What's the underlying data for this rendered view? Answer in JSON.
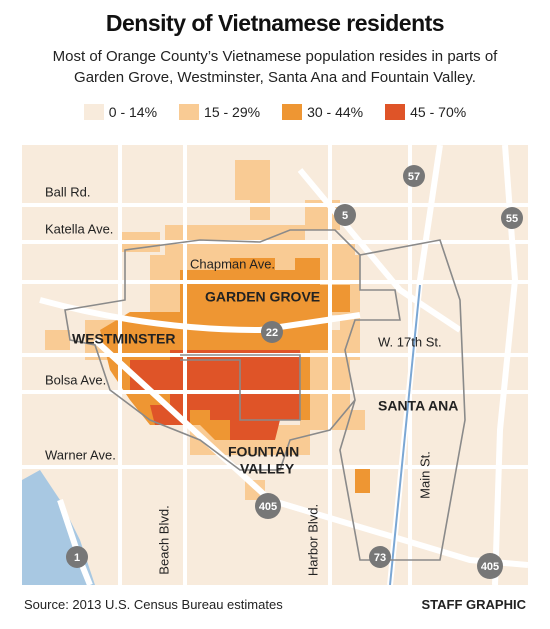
{
  "header": {
    "title": "Density of Vietnamese residents",
    "subtitle": "Most of Orange County’s Vietnamese population resides in parts of Garden Grove, Westminster, Santa Ana and Fountain Valley."
  },
  "legend": [
    {
      "label": "0 - 14%",
      "color": "#f8ebdc"
    },
    {
      "label": "15 - 29%",
      "color": "#f9cb94"
    },
    {
      "label": "30 - 44%",
      "color": "#ee9633"
    },
    {
      "label": "45 - 70%",
      "color": "#df5428"
    }
  ],
  "map": {
    "streets": [
      "Ball Rd.",
      "Katella Ave.",
      "Chapman Ave.",
      "W. 17th St.",
      "Bolsa Ave.",
      "Warner Ave.",
      "Beach Blvd.",
      "Harbor Blvd.",
      "Main St."
    ],
    "cities": [
      "GARDEN GROVE",
      "WESTMINSTER",
      "SANTA ANA",
      "FOUNTAIN",
      "VALLEY"
    ],
    "highways": [
      "57",
      "55",
      "5",
      "22",
      "405",
      "405",
      "73",
      "1"
    ]
  },
  "footer": {
    "source": "Source: 2013 U.S. Census Bureau estimates",
    "credit": "STAFF GRAPHIC"
  }
}
